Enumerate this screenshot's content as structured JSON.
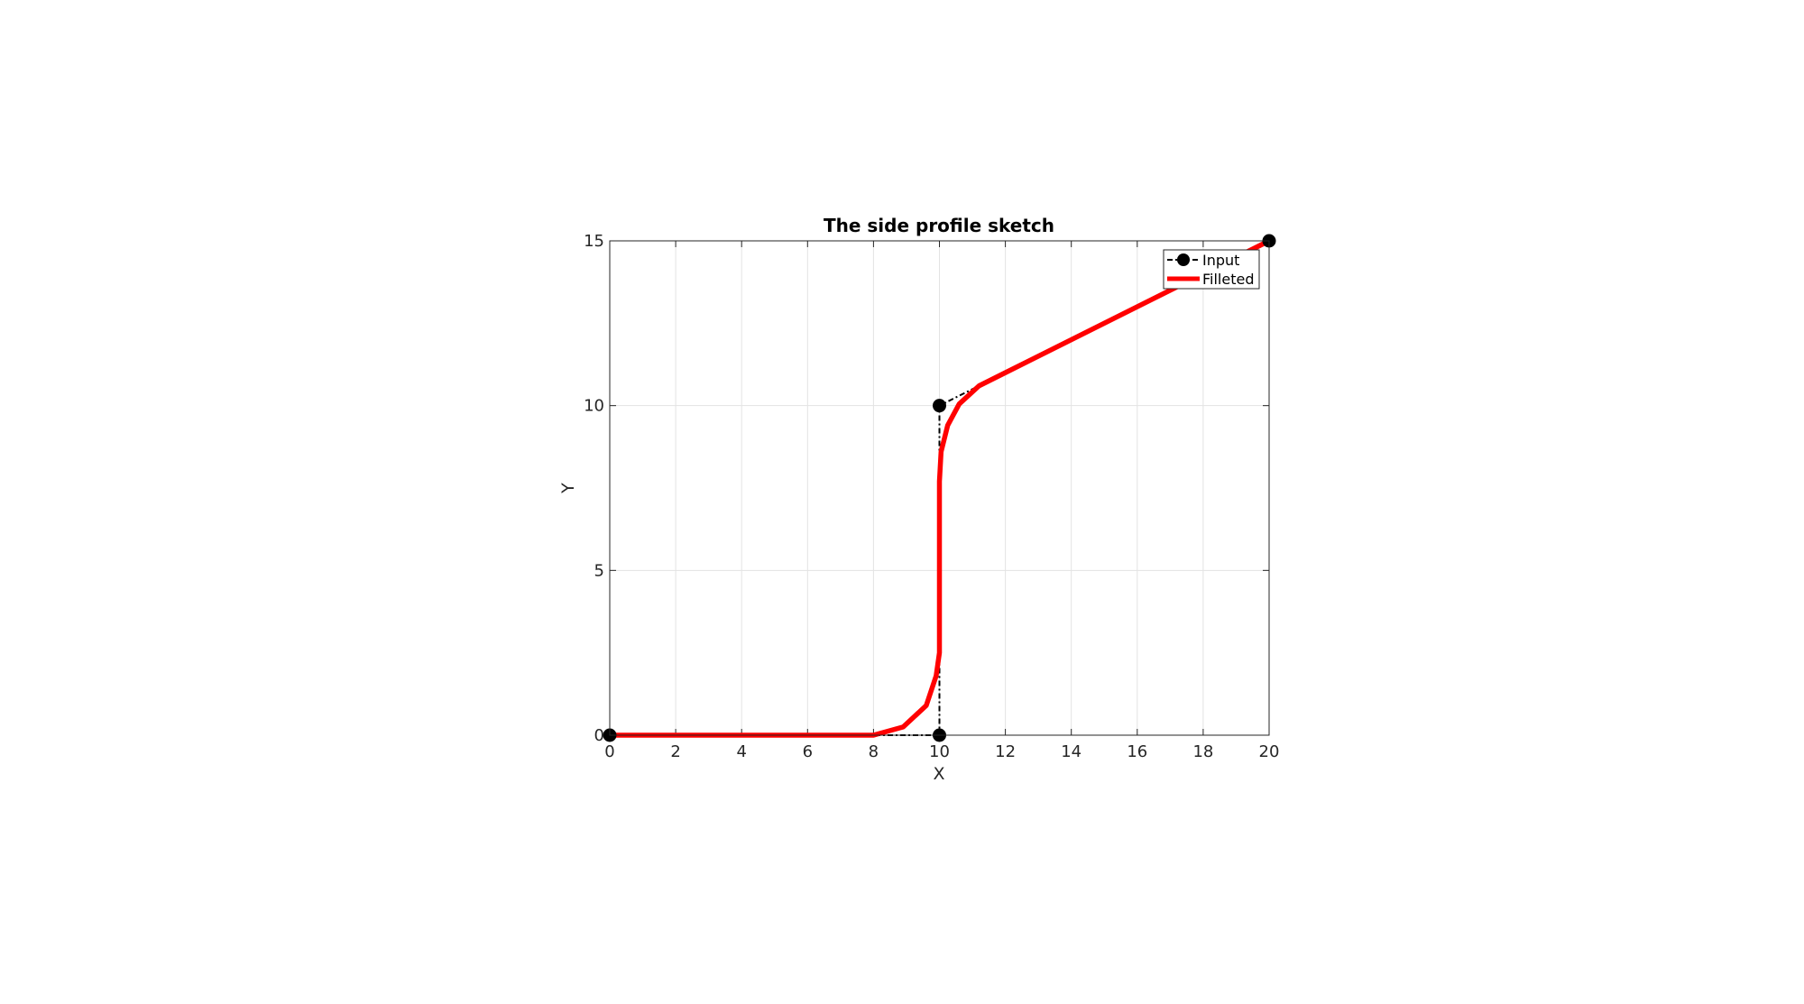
{
  "chart_data": {
    "type": "line",
    "title": "The side profile sketch",
    "xlabel": "X",
    "ylabel": "Y",
    "xlim": [
      0,
      20
    ],
    "ylim": [
      0,
      15
    ],
    "xticks": [
      0,
      2,
      4,
      6,
      8,
      10,
      12,
      14,
      16,
      18,
      20
    ],
    "yticks": [
      0,
      5,
      10,
      15
    ],
    "grid": true,
    "legend_position": "top-right",
    "series": [
      {
        "name": "Input",
        "style": "dash-dot with circle markers",
        "color": "#000000",
        "x": [
          0,
          10,
          10,
          20
        ],
        "y": [
          0,
          0,
          10,
          15
        ]
      },
      {
        "name": "Filleted",
        "style": "solid thick",
        "color": "#ff0000",
        "x": [
          0,
          8,
          8.9,
          9.6,
          9.9,
          10,
          10,
          10.05,
          10.25,
          10.6,
          11.2,
          12,
          20
        ],
        "y": [
          0,
          0,
          0.25,
          0.9,
          1.8,
          2.5,
          7.7,
          8.6,
          9.4,
          10.05,
          10.6,
          11,
          15
        ]
      }
    ]
  }
}
